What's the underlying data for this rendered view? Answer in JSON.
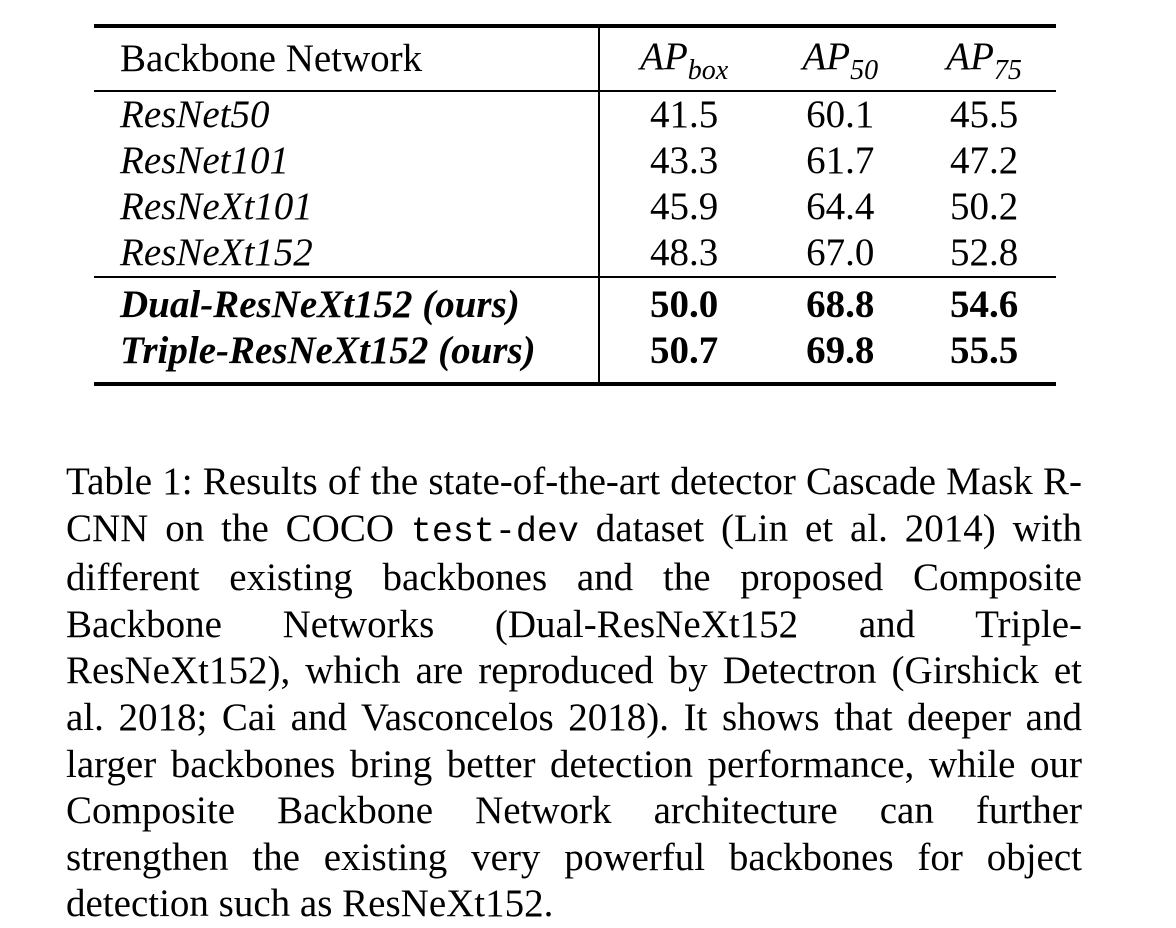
{
  "table": {
    "headers": {
      "name": "Backbone Network",
      "ap_box": {
        "base": "AP",
        "sub": "box"
      },
      "ap_50": {
        "base": "AP",
        "sub": "50"
      },
      "ap_75": {
        "base": "AP",
        "sub": "75"
      }
    },
    "rows": [
      {
        "name": "ResNet50",
        "ap_box": "41.5",
        "ap_50": "60.1",
        "ap_75": "45.5"
      },
      {
        "name": "ResNet101",
        "ap_box": "43.3",
        "ap_50": "61.7",
        "ap_75": "47.2"
      },
      {
        "name": "ResNeXt101",
        "ap_box": "45.9",
        "ap_50": "64.4",
        "ap_75": "50.2"
      },
      {
        "name": "ResNeXt152",
        "ap_box": "48.3",
        "ap_50": "67.0",
        "ap_75": "52.8"
      }
    ],
    "ours_rows": [
      {
        "name": "Dual-ResNeXt152 (ours)",
        "ap_box": "50.0",
        "ap_50": "68.8",
        "ap_75": "54.6"
      },
      {
        "name": "Triple-ResNeXt152 (ours)",
        "ap_box": "50.7",
        "ap_50": "69.8",
        "ap_75": "55.5"
      }
    ]
  },
  "caption": {
    "part1": "Table 1: Results of the state-of-the-art detector Cascade Mask R-CNN on the COCO ",
    "code": "test-dev",
    "part2": " dataset (Lin et al. 2014) with different existing backbones and the pro­posed Composite Backbone Networks (Dual-ResNeXt152 and Triple-ResNeXt152), which are reproduced by Detec­tron (Girshick et al. 2018; Cai and Vasconcelos 2018). It shows that deeper and larger backbones bring better detec­tion performance, while our Composite Backbone Network architecture can further strengthen the existing very power­ful backbones for object detection such as ResNeXt152."
  }
}
